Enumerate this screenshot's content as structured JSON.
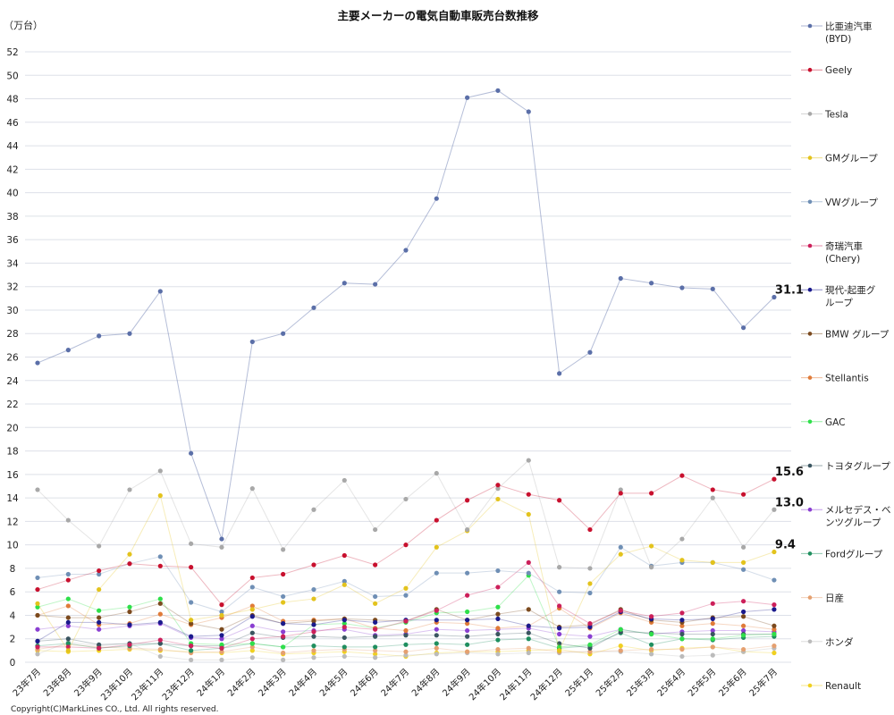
{
  "chart_data": {
    "type": "line",
    "title": "主要メーカーの電気自動車販売台数推移",
    "ylabel": "（万台）",
    "xlabel": "",
    "ylim": [
      0,
      52
    ],
    "ytick_step": 2,
    "grid": true,
    "legend_placement": "right",
    "categories": [
      "23年7月",
      "23年8月",
      "23年9月",
      "23年10月",
      "23年11月",
      "23年12月",
      "24年1月",
      "24年2月",
      "24年3月",
      "24年4月",
      "24年5月",
      "24年6月",
      "24年7月",
      "24年8月",
      "24年9月",
      "24年10月",
      "24年11月",
      "24年12月",
      "25年1月",
      "25年2月",
      "25年3月",
      "25年4月",
      "25年5月",
      "25年6月",
      "25年7月"
    ],
    "series": [
      {
        "name": "比亜迪汽車",
        "name2": "(BYD)",
        "color": "#5b6fa8",
        "values": [
          25.5,
          26.6,
          27.8,
          28.0,
          31.6,
          17.8,
          10.5,
          27.3,
          28.0,
          30.2,
          32.3,
          32.2,
          35.1,
          39.5,
          48.1,
          48.7,
          46.9,
          24.6,
          26.4,
          32.7,
          32.3,
          31.9,
          31.8,
          28.5,
          31.1
        ],
        "end_label": "31.1"
      },
      {
        "name": "Geely",
        "color": "#c8102e",
        "values": [
          6.2,
          7.0,
          7.8,
          8.4,
          8.2,
          8.1,
          4.9,
          7.2,
          7.5,
          8.3,
          9.1,
          8.3,
          10.0,
          12.1,
          13.8,
          15.1,
          14.3,
          13.8,
          11.3,
          14.4,
          14.4,
          15.9,
          14.7,
          14.3,
          15.6
        ],
        "end_label": "15.6"
      },
      {
        "name": "Tesla",
        "color": "#a8a8a8",
        "values": [
          14.7,
          12.1,
          9.9,
          14.7,
          16.3,
          10.1,
          9.8,
          14.8,
          9.6,
          13.0,
          15.5,
          11.3,
          13.9,
          16.1,
          11.3,
          14.8,
          17.2,
          8.1,
          8.0,
          14.7,
          8.1,
          10.5,
          14.0,
          9.8,
          13.0
        ],
        "end_label": "13.0"
      },
      {
        "name": "GMグループ",
        "color": "#e3c31c",
        "values": [
          5.0,
          1.0,
          6.2,
          9.2,
          14.2,
          3.6,
          4.0,
          4.5,
          5.1,
          5.4,
          6.6,
          5.0,
          6.3,
          9.8,
          11.2,
          13.9,
          12.6,
          1.0,
          6.7,
          9.2,
          9.9,
          8.7,
          8.5,
          8.5,
          9.4
        ],
        "end_label": "9.4"
      },
      {
        "name": "VWグループ",
        "color": "#6f8fb5",
        "values": [
          7.2,
          7.5,
          7.5,
          8.4,
          9.0,
          5.1,
          4.3,
          6.4,
          5.6,
          6.2,
          6.9,
          5.6,
          5.7,
          7.6,
          7.6,
          7.8,
          7.6,
          6.0,
          5.9,
          9.8,
          8.2,
          8.5,
          8.5,
          7.9,
          7.0
        ]
      },
      {
        "name": "奇瑞汽車",
        "name2": "(Chery)",
        "color": "#cc1f5a",
        "values": [
          1.3,
          1.3,
          1.2,
          1.5,
          1.9,
          1.4,
          1.2,
          2.0,
          2.2,
          2.6,
          3.0,
          2.8,
          3.5,
          4.4,
          5.7,
          6.4,
          8.5,
          4.8,
          3.3,
          4.4,
          3.9,
          4.2,
          5.0,
          5.2,
          4.9
        ]
      },
      {
        "name": "現代-起亜グ",
        "name2": "ループ",
        "color": "#1a1a8c",
        "values": [
          1.8,
          3.4,
          3.4,
          3.2,
          3.4,
          2.2,
          2.3,
          3.9,
          3.3,
          3.2,
          3.6,
          3.4,
          3.6,
          3.6,
          3.6,
          3.7,
          3.1,
          2.9,
          3.0,
          4.3,
          3.7,
          3.6,
          3.7,
          4.3,
          4.5
        ]
      },
      {
        "name": "BMW グループ",
        "color": "#7b4a1e",
        "values": [
          4.0,
          3.8,
          3.8,
          4.3,
          5.0,
          3.3,
          2.8,
          4.0,
          3.3,
          3.5,
          3.7,
          3.6,
          3.5,
          4.5,
          3.6,
          4.1,
          4.5,
          3.0,
          3.2,
          4.5,
          3.6,
          3.4,
          3.8,
          3.9,
          3.1
        ]
      },
      {
        "name": "Stellantis",
        "color": "#e07b39",
        "values": [
          4.0,
          4.8,
          3.2,
          3.3,
          4.1,
          3.2,
          3.8,
          4.8,
          3.5,
          3.6,
          3.7,
          2.9,
          2.7,
          3.4,
          3.3,
          2.9,
          3.1,
          4.6,
          2.9,
          4.2,
          3.4,
          3.1,
          3.3,
          3.1,
          2.8
        ]
      },
      {
        "name": "GAC",
        "color": "#2ee04a",
        "values": [
          4.7,
          5.4,
          4.4,
          4.7,
          5.4,
          1.6,
          1.5,
          1.6,
          1.3,
          3.2,
          3.3,
          2.9,
          3.4,
          4.2,
          4.3,
          4.7,
          7.4,
          1.3,
          1.5,
          2.8,
          2.4,
          2.0,
          2.0,
          2.3,
          2.4
        ]
      },
      {
        "name": "トヨタグループ",
        "color": "#3a5560",
        "values": [
          1.8,
          2.0,
          1.5,
          1.6,
          1.6,
          1.4,
          1.4,
          2.5,
          2.1,
          2.2,
          2.1,
          2.2,
          2.3,
          2.3,
          2.2,
          2.4,
          2.5,
          1.6,
          1.2,
          2.6,
          2.5,
          2.4,
          2.4,
          2.4,
          2.4
        ]
      },
      {
        "name": "メルセデス・ベ",
        "name2": "ンツグループ",
        "color": "#8a3fd1",
        "values": [
          2.8,
          3.1,
          2.8,
          3.1,
          3.3,
          2.1,
          2.0,
          3.1,
          2.6,
          2.7,
          2.8,
          2.3,
          2.4,
          2.8,
          2.7,
          2.8,
          2.9,
          2.4,
          2.2,
          2.8,
          2.4,
          2.6,
          2.7,
          2.7,
          2.6
        ]
      },
      {
        "name": "Fordグループ",
        "color": "#1f8f5f",
        "values": [
          1.4,
          1.6,
          1.2,
          1.4,
          1.6,
          1.0,
          1.2,
          1.6,
          1.3,
          1.4,
          1.3,
          1.3,
          1.5,
          1.6,
          1.5,
          1.9,
          2.0,
          1.2,
          1.4,
          2.5,
          1.5,
          2.0,
          1.9,
          2.1,
          2.2
        ]
      },
      {
        "name": "日産",
        "color": "#e5a070",
        "values": [
          1.1,
          1.5,
          1.3,
          1.2,
          1.1,
          0.8,
          0.9,
          1.3,
          0.8,
          1.0,
          1.1,
          1.0,
          0.9,
          1.2,
          0.9,
          1.1,
          1.2,
          0.9,
          0.9,
          1.0,
          1.1,
          1.1,
          1.3,
          1.1,
          1.4
        ]
      },
      {
        "name": "ホンダ",
        "color": "#bbbbbb",
        "values": [
          0.7,
          1.7,
          1.4,
          1.6,
          0.5,
          0.2,
          0.2,
          0.4,
          0.2,
          0.4,
          0.5,
          0.4,
          0.6,
          0.7,
          0.8,
          0.7,
          0.8,
          0.8,
          0.9,
          0.9,
          0.7,
          0.5,
          0.6,
          0.9,
          1.2
        ]
      },
      {
        "name": "Renault",
        "color": "#f0d020",
        "values": [
          1.0,
          0.9,
          1.0,
          1.1,
          1.0,
          0.9,
          0.8,
          1.0,
          0.7,
          0.8,
          0.9,
          0.7,
          0.5,
          0.8,
          0.9,
          0.9,
          1.0,
          1.1,
          0.7,
          1.4,
          1.0,
          1.2,
          1.3,
          0.9,
          0.8
        ]
      }
    ],
    "copyright": "Copyright(C)MarkLines CO., Ltd. All rights reserved."
  }
}
